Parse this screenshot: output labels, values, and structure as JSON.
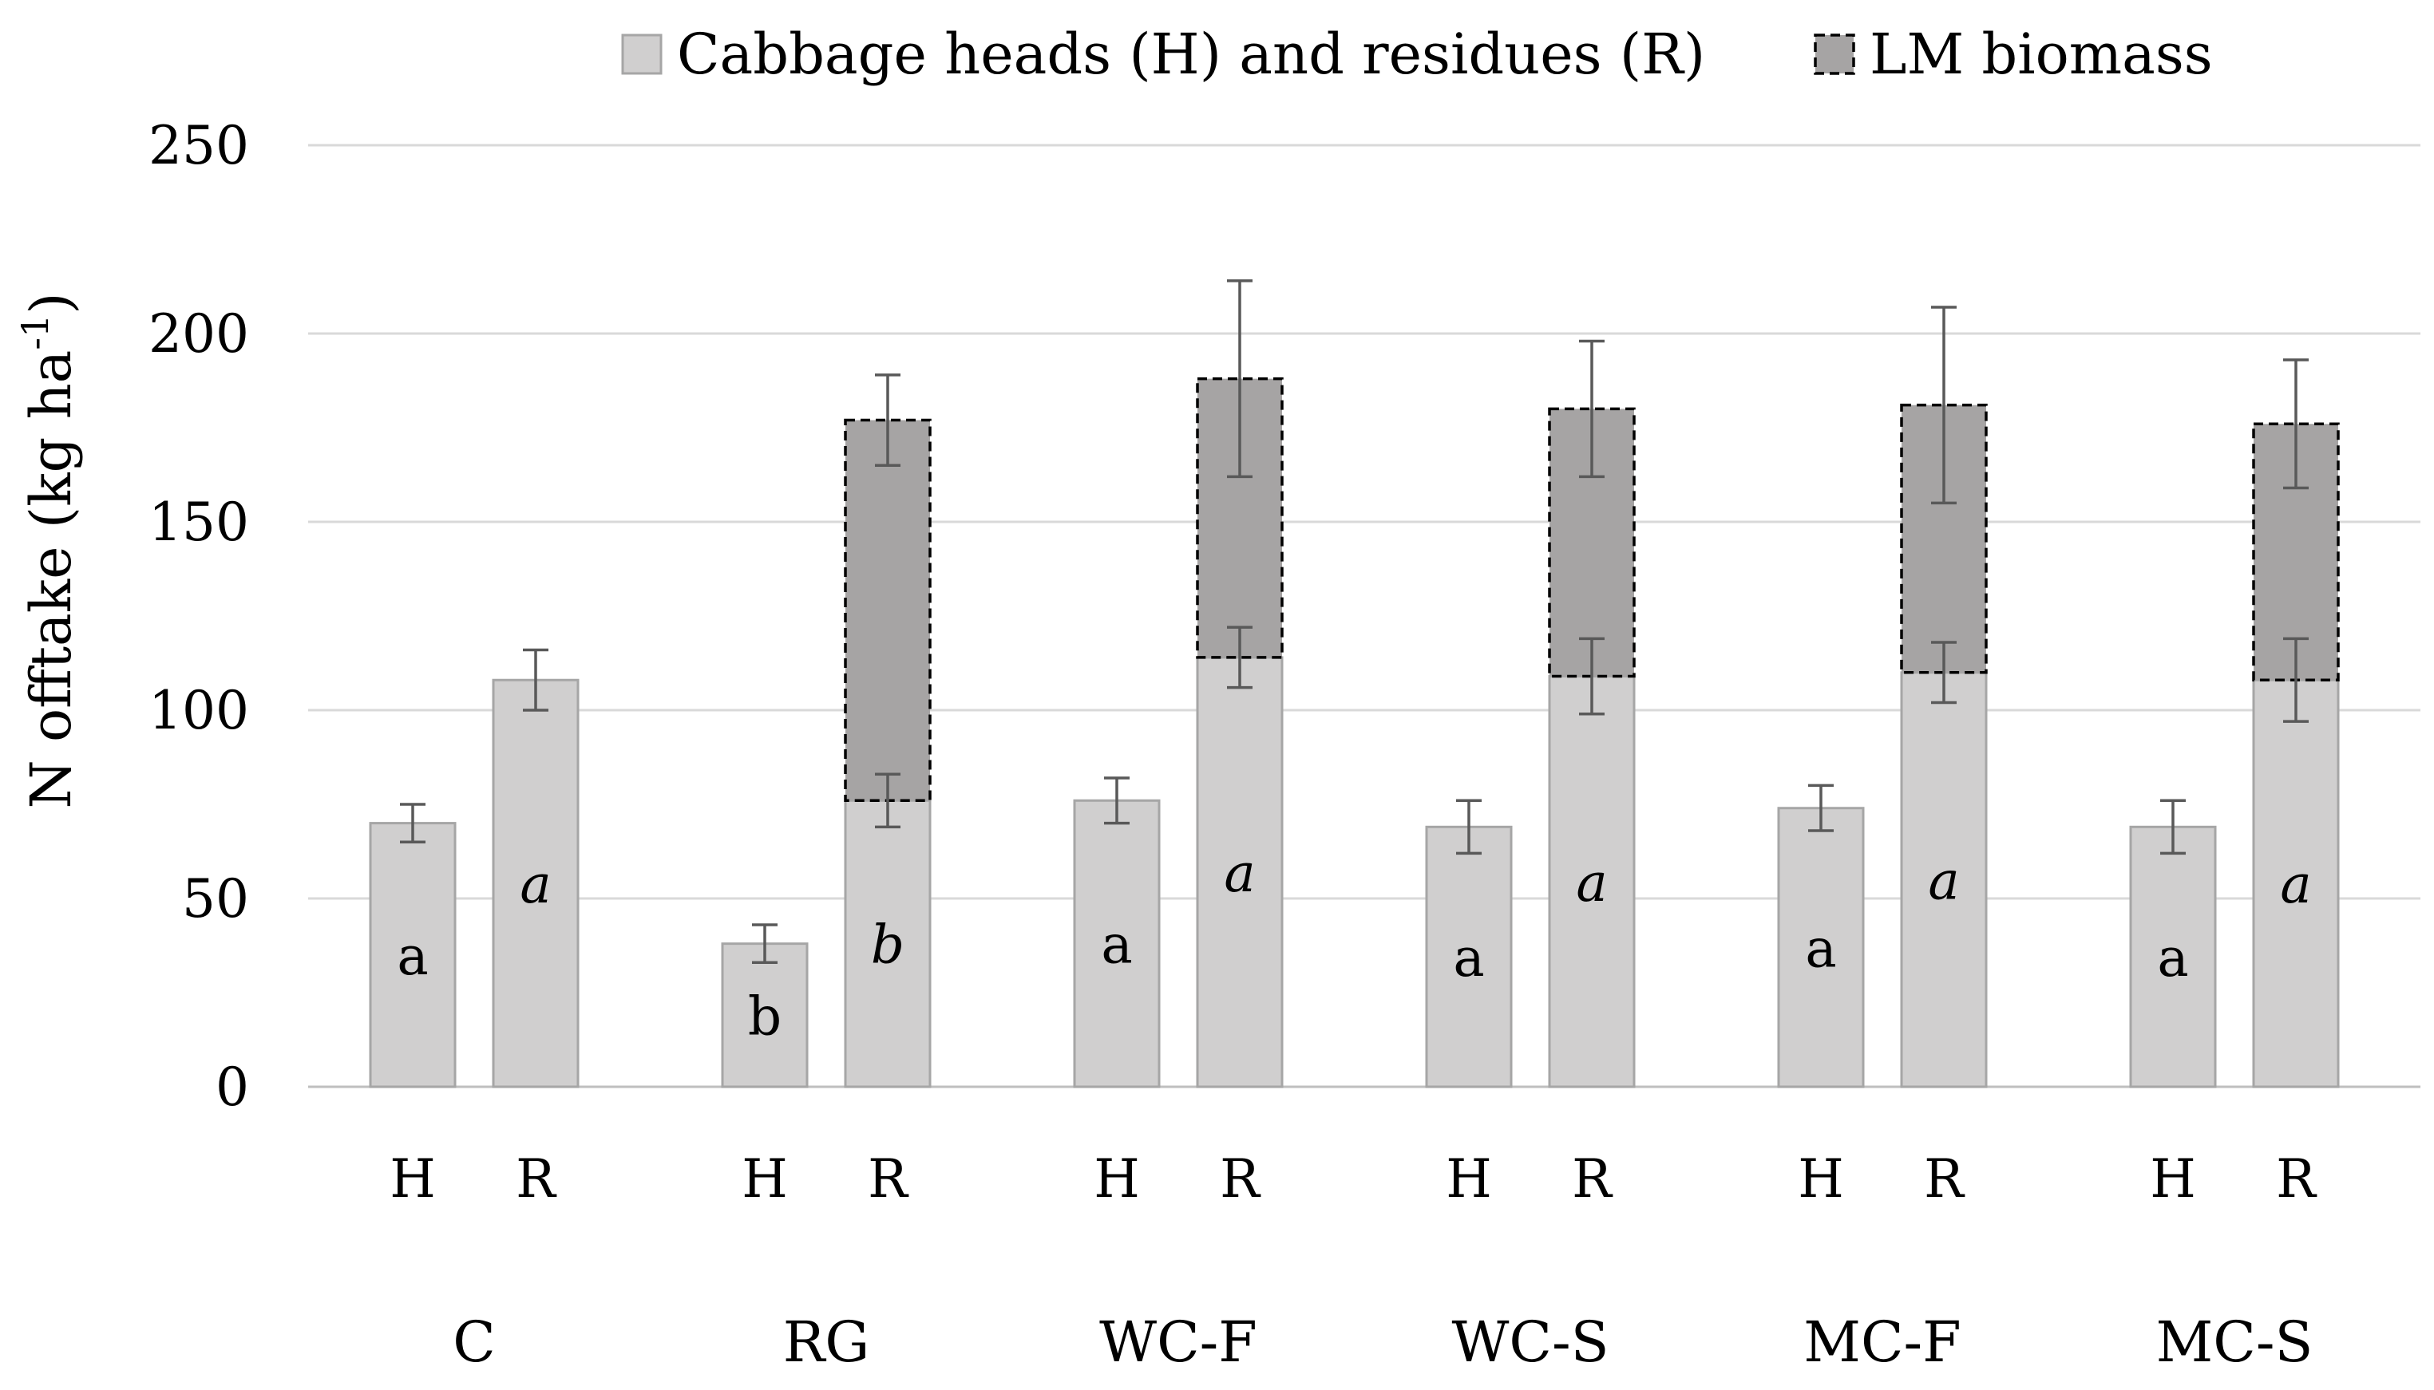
{
  "chart_data": {
    "type": "bar",
    "stacked": true,
    "title": "",
    "ylabel": "N offtake (kg ha",
    "ylabel_sup": "-1",
    "ylabel_close": ")",
    "xlabel": "",
    "ylim": [
      0,
      250
    ],
    "yticks": [
      0,
      50,
      100,
      150,
      200,
      250
    ],
    "grid": true,
    "legend_position": "top",
    "colors": {
      "base": "#d0cfcf",
      "lm": "#a6a4a4",
      "error": "#595959",
      "grid": "#d9d9d9"
    },
    "legend": [
      {
        "label": "Cabbage heads (H) and residues (R)",
        "style": "solid",
        "color": "#d0cfcf"
      },
      {
        "label": "LM biomass",
        "style": "dashed",
        "color": "#a6a4a4"
      }
    ],
    "groups": [
      {
        "name": "C",
        "bars": [
          {
            "label": "H",
            "value": 70,
            "error": 5,
            "letter": "a",
            "italic": false
          },
          {
            "label": "R",
            "value": 108,
            "error": 8,
            "letter": "a",
            "italic": true
          }
        ]
      },
      {
        "name": "RG",
        "bars": [
          {
            "label": "H",
            "value": 38,
            "error": 5,
            "letter": "b",
            "italic": false
          },
          {
            "label": "R",
            "value": 76,
            "error": 7,
            "letter": "b",
            "italic": true,
            "lm_value": 101,
            "lm_error": 12
          }
        ]
      },
      {
        "name": "WC-F",
        "bars": [
          {
            "label": "H",
            "value": 76,
            "error": 6,
            "letter": "a",
            "italic": false
          },
          {
            "label": "R",
            "value": 114,
            "error": 8,
            "letter": "a",
            "italic": true,
            "lm_value": 74,
            "lm_error": 26
          }
        ]
      },
      {
        "name": "WC-S",
        "bars": [
          {
            "label": "H",
            "value": 69,
            "error": 7,
            "letter": "a",
            "italic": false
          },
          {
            "label": "R",
            "value": 109,
            "error": 10,
            "letter": "a",
            "italic": true,
            "lm_value": 71,
            "lm_error": 18
          }
        ]
      },
      {
        "name": "MC-F",
        "bars": [
          {
            "label": "H",
            "value": 74,
            "error": 6,
            "letter": "a",
            "italic": false
          },
          {
            "label": "R",
            "value": 110,
            "error": 8,
            "letter": "a",
            "italic": true,
            "lm_value": 71,
            "lm_error": 26
          }
        ]
      },
      {
        "name": "MC-S",
        "bars": [
          {
            "label": "H",
            "value": 69,
            "error": 7,
            "letter": "a",
            "italic": false
          },
          {
            "label": "R",
            "value": 108,
            "error": 11,
            "letter": "a",
            "italic": true,
            "lm_value": 68,
            "lm_error": 17
          }
        ]
      }
    ]
  }
}
